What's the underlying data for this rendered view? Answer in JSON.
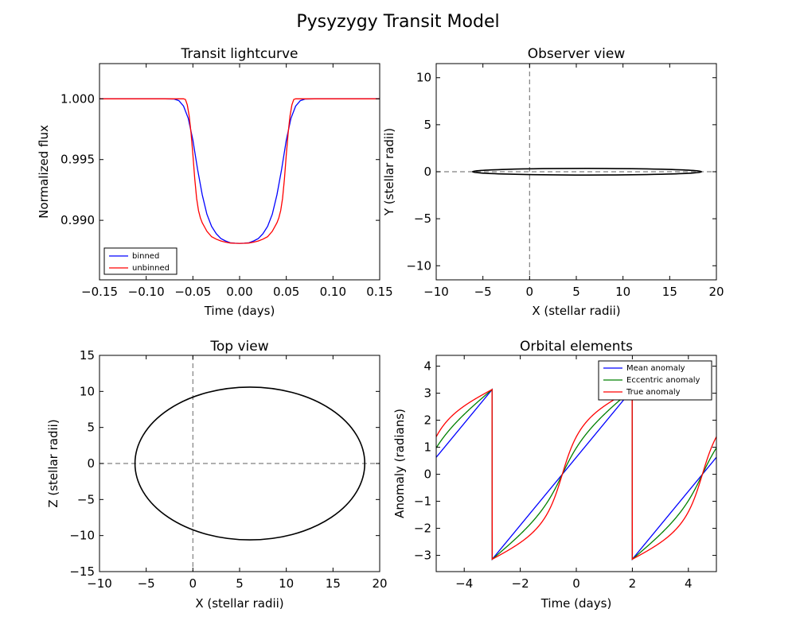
{
  "figure": {
    "title": "Pysyzygy Transit Model"
  },
  "chart_data": [
    {
      "id": "lightcurve",
      "type": "line",
      "title": "Transit lightcurve",
      "xlabel": "Time (days)",
      "ylabel": "Normalized flux",
      "xlim": [
        -0.15,
        0.15
      ],
      "ylim": [
        0.9851,
        1.0029
      ],
      "xticks": [
        -0.15,
        -0.1,
        -0.05,
        0.0,
        0.05,
        0.1,
        0.15
      ],
      "xtick_labels": [
        "−0.15",
        "−0.10",
        "−0.05",
        "0.00",
        "0.05",
        "0.10",
        "0.15"
      ],
      "yticks": [
        0.99,
        0.995,
        1.0
      ],
      "ytick_labels": [
        "0.990",
        "0.995",
        "1.000"
      ],
      "legend": {
        "placement": "lower-left",
        "entries": [
          "binned",
          "unbinned"
        ]
      },
      "series": [
        {
          "name": "binned",
          "color": "#0000ff",
          "x": [
            -0.15,
            -0.08,
            -0.07,
            -0.065,
            -0.06,
            -0.055,
            -0.05,
            -0.045,
            -0.04,
            -0.035,
            -0.03,
            -0.025,
            -0.02,
            -0.015,
            -0.01,
            -0.005,
            0.0,
            0.005,
            0.01,
            0.015,
            0.02,
            0.025,
            0.03,
            0.035,
            0.04,
            0.045,
            0.05,
            0.055,
            0.06,
            0.065,
            0.07,
            0.08,
            0.15
          ],
          "y": [
            1.0,
            1.0,
            0.99998,
            0.99985,
            0.9994,
            0.9984,
            0.9966,
            0.9942,
            0.9921,
            0.9905,
            0.9895,
            0.9889,
            0.9885,
            0.9883,
            0.98815,
            0.98812,
            0.9881,
            0.98812,
            0.98815,
            0.9883,
            0.9885,
            0.9889,
            0.9895,
            0.9905,
            0.9921,
            0.9942,
            0.9966,
            0.9984,
            0.9994,
            0.99985,
            0.99998,
            1.0,
            1.0
          ]
        },
        {
          "name": "unbinned",
          "color": "#ff0000",
          "x": [
            -0.15,
            -0.06,
            -0.058,
            -0.056,
            -0.054,
            -0.052,
            -0.05,
            -0.048,
            -0.046,
            -0.044,
            -0.042,
            -0.04,
            -0.035,
            -0.03,
            -0.025,
            -0.02,
            -0.015,
            -0.01,
            -0.005,
            0.0,
            0.005,
            0.01,
            0.015,
            0.02,
            0.025,
            0.03,
            0.035,
            0.04,
            0.042,
            0.044,
            0.046,
            0.048,
            0.05,
            0.052,
            0.054,
            0.056,
            0.058,
            0.06,
            0.15
          ],
          "y": [
            1.0,
            1.0,
            0.99995,
            0.9995,
            0.9986,
            0.9972,
            0.9954,
            0.9934,
            0.9918,
            0.9908,
            0.9902,
            0.9898,
            0.9891,
            0.98865,
            0.98845,
            0.9883,
            0.9882,
            0.98813,
            0.98811,
            0.9881,
            0.98811,
            0.98813,
            0.9882,
            0.9883,
            0.98845,
            0.98865,
            0.9891,
            0.9898,
            0.9902,
            0.9908,
            0.9918,
            0.9934,
            0.9954,
            0.9972,
            0.9986,
            0.9995,
            0.99995,
            1.0,
            1.0
          ]
        }
      ]
    },
    {
      "id": "observer",
      "type": "line",
      "title": "Observer view",
      "xlabel": "X (stellar radii)",
      "ylabel": "Y (stellar radii)",
      "xlim": [
        -10,
        20
      ],
      "ylim": [
        -11.5,
        11.5
      ],
      "xticks": [
        -10,
        -5,
        0,
        5,
        10,
        15,
        20
      ],
      "xtick_labels": [
        "−10",
        "−5",
        "0",
        "5",
        "10",
        "15",
        "20"
      ],
      "yticks": [
        -10,
        -5,
        0,
        5,
        10
      ],
      "ytick_labels": [
        "−10",
        "−5",
        "0",
        "5",
        "10"
      ],
      "orbit": {
        "x_min": -6.1,
        "x_max": 18.4,
        "y_half_height": 0.35
      },
      "reference_lines": {
        "x": 0,
        "y": 0,
        "style": "dashed"
      }
    },
    {
      "id": "top",
      "type": "line",
      "title": "Top view",
      "xlabel": "X (stellar radii)",
      "ylabel": "Z (stellar radii)",
      "xlim": [
        -10,
        20
      ],
      "ylim": [
        -15,
        15
      ],
      "xticks": [
        -10,
        -5,
        0,
        5,
        10,
        15,
        20
      ],
      "xtick_labels": [
        "−10",
        "−5",
        "0",
        "5",
        "10",
        "15",
        "20"
      ],
      "yticks": [
        -15,
        -10,
        -5,
        0,
        5,
        10,
        15
      ],
      "ytick_labels": [
        "−15",
        "−10",
        "−5",
        "0",
        "5",
        "10",
        "15"
      ],
      "orbit": {
        "x_min": -6.2,
        "x_max": 18.4,
        "z_min": -10.6,
        "z_max": 10.6
      },
      "reference_lines": {
        "x": 0,
        "y": 0,
        "style": "dashed"
      }
    },
    {
      "id": "orbital",
      "type": "line",
      "title": "Orbital elements",
      "xlabel": "Time (days)",
      "ylabel": "Anomaly (radians)",
      "xlim": [
        -5,
        5
      ],
      "ylim": [
        -3.6,
        4.4
      ],
      "xticks": [
        -4,
        -2,
        0,
        2,
        4
      ],
      "xtick_labels": [
        "−4",
        "−2",
        "0",
        "2",
        "4"
      ],
      "yticks": [
        -3,
        -2,
        -1,
        0,
        1,
        2,
        3,
        4
      ],
      "ytick_labels": [
        "−3",
        "−2",
        "−1",
        "0",
        "1",
        "2",
        "3",
        "4"
      ],
      "legend": {
        "placement": "top-right",
        "entries": [
          "Mean anomaly",
          "Eccentric anomaly",
          "True anomaly"
        ]
      },
      "period_days": 5.0,
      "time_of_periapse_days": -0.5,
      "eccentricity": 0.42,
      "series": [
        {
          "name": "Mean anomaly",
          "color": "#0000ff"
        },
        {
          "name": "Eccentric anomaly",
          "color": "#008000"
        },
        {
          "name": "True anomaly",
          "color": "#ff0000"
        }
      ]
    }
  ]
}
